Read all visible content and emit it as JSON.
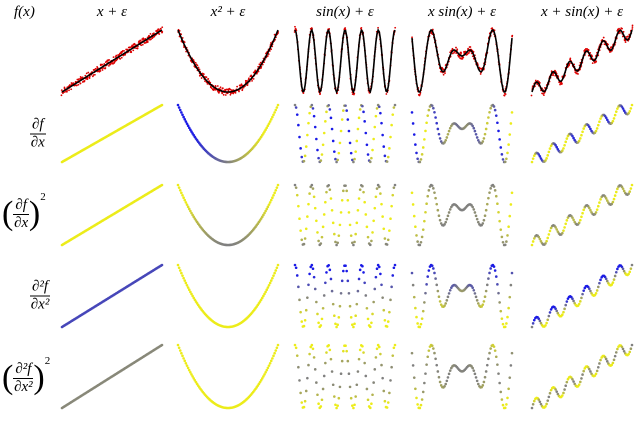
{
  "header": {
    "corner": "f(x)",
    "columns": [
      "x + ε",
      "x² + ε",
      "sin(x) + ε",
      "x sin(x) + ε",
      "x + sin(x) + ε"
    ]
  },
  "rows": [
    {
      "numerator": "∂f",
      "denominator": "∂x",
      "mode": "signed"
    },
    {
      "left": "(",
      "numerator": "∂f",
      "denominator": "∂x",
      "right": ")",
      "power": "2",
      "mode": "squared"
    },
    {
      "numerator": "∂²f",
      "denominator": "∂x²",
      "mode": "signed"
    },
    {
      "left": "(",
      "numerator": "∂²f",
      "denominator": "∂x²",
      "right": ")",
      "power": "2",
      "mode": "squared"
    }
  ],
  "colors": {
    "negative": "#1a1ae6",
    "zero": "#808080",
    "positive": "#ecec1a",
    "line": "#000000",
    "noise": "#dd0000"
  }
}
